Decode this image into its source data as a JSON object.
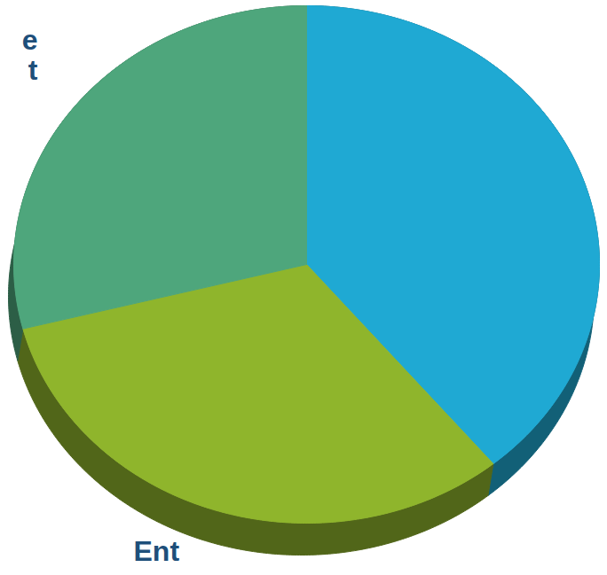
{
  "chart_data": {
    "type": "pie",
    "values": [
      39,
      32,
      29
    ],
    "colors": [
      "#1fa9d3",
      "#8fb52c",
      "#4ea67c"
    ],
    "annotations": [
      "e",
      "t",
      "Ent"
    ],
    "data_labels": false,
    "tick_labels": false
  }
}
